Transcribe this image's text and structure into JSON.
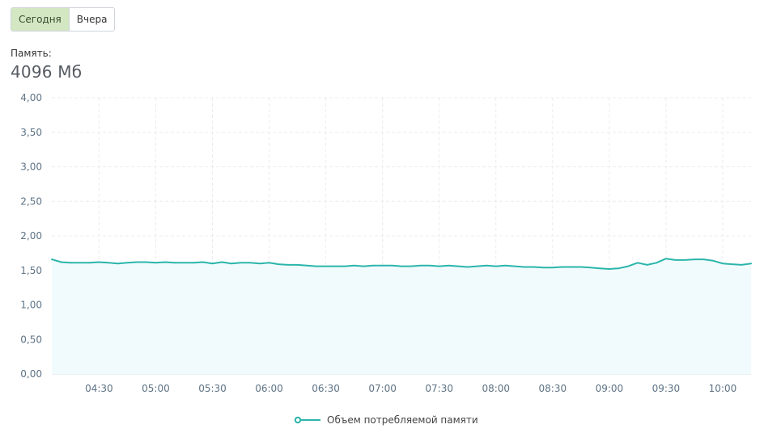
{
  "tabs": [
    {
      "label": "Сегодня",
      "active": true
    },
    {
      "label": "Вчера",
      "active": false
    }
  ],
  "memory": {
    "label": "Память:",
    "value": "4096 Мб"
  },
  "colors": {
    "series": "#2bb5ab",
    "area": "#f1fbfd",
    "grid": "#e9ecef",
    "tab_active_bg": "#d3e7c3"
  },
  "chart_data": {
    "type": "area",
    "title": "",
    "xlabel": "",
    "ylabel": "",
    "ylim": [
      0,
      4
    ],
    "xlim": [
      "04:05",
      "10:15"
    ],
    "y_ticks": [
      "0,00",
      "0,50",
      "1,00",
      "1,50",
      "2,00",
      "2,50",
      "3,00",
      "3,50",
      "4,00"
    ],
    "x_ticks": [
      "04:30",
      "05:00",
      "05:30",
      "06:00",
      "06:30",
      "07:00",
      "07:30",
      "08:00",
      "08:30",
      "09:00",
      "09:30",
      "10:00"
    ],
    "grid": true,
    "legend_position": "bottom",
    "series": [
      {
        "name": "Объем потребляемой памяти",
        "x": [
          "04:05",
          "04:10",
          "04:15",
          "04:20",
          "04:25",
          "04:30",
          "04:35",
          "04:40",
          "04:45",
          "04:50",
          "04:55",
          "05:00",
          "05:05",
          "05:10",
          "05:15",
          "05:20",
          "05:25",
          "05:30",
          "05:35",
          "05:40",
          "05:45",
          "05:50",
          "05:55",
          "06:00",
          "06:05",
          "06:10",
          "06:15",
          "06:20",
          "06:25",
          "06:30",
          "06:35",
          "06:40",
          "06:45",
          "06:50",
          "06:55",
          "07:00",
          "07:05",
          "07:10",
          "07:15",
          "07:20",
          "07:25",
          "07:30",
          "07:35",
          "07:40",
          "07:45",
          "07:50",
          "07:55",
          "08:00",
          "08:05",
          "08:10",
          "08:15",
          "08:20",
          "08:25",
          "08:30",
          "08:35",
          "08:40",
          "08:45",
          "08:50",
          "08:55",
          "09:00",
          "09:05",
          "09:10",
          "09:15",
          "09:20",
          "09:25",
          "09:30",
          "09:35",
          "09:40",
          "09:45",
          "09:50",
          "09:55",
          "10:00",
          "10:05",
          "10:10",
          "10:15"
        ],
        "values": [
          1.66,
          1.62,
          1.61,
          1.61,
          1.61,
          1.62,
          1.61,
          1.6,
          1.61,
          1.62,
          1.62,
          1.61,
          1.62,
          1.61,
          1.61,
          1.61,
          1.62,
          1.6,
          1.62,
          1.6,
          1.61,
          1.61,
          1.6,
          1.61,
          1.59,
          1.58,
          1.58,
          1.57,
          1.56,
          1.56,
          1.56,
          1.56,
          1.57,
          1.56,
          1.57,
          1.57,
          1.57,
          1.56,
          1.56,
          1.57,
          1.57,
          1.56,
          1.57,
          1.56,
          1.55,
          1.56,
          1.57,
          1.56,
          1.57,
          1.56,
          1.55,
          1.55,
          1.54,
          1.54,
          1.55,
          1.55,
          1.55,
          1.54,
          1.53,
          1.52,
          1.53,
          1.56,
          1.61,
          1.58,
          1.61,
          1.67,
          1.65,
          1.65,
          1.66,
          1.66,
          1.64,
          1.6,
          1.59,
          1.58,
          1.6
        ]
      }
    ]
  }
}
